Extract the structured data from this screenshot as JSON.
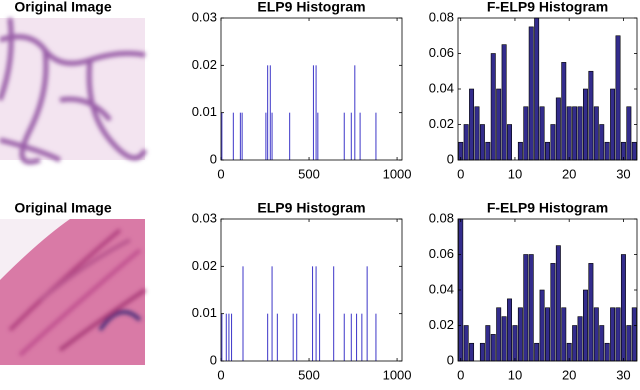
{
  "images": [
    {
      "title": "Original Image"
    },
    {
      "title": "Original Image"
    }
  ],
  "chart_data": [
    {
      "type": "stem",
      "title": "ELP9 Histogram",
      "color": "#3c35c8",
      "x": [
        5,
        70,
        110,
        120,
        255,
        265,
        280,
        290,
        390,
        525,
        540,
        550,
        700,
        740,
        760,
        790,
        880
      ],
      "values": [
        0.01,
        0.01,
        0.01,
        0.01,
        0.01,
        0.02,
        0.02,
        0.01,
        0.01,
        0.02,
        0.02,
        0.01,
        0.01,
        0.01,
        0.02,
        0.01,
        0.01
      ],
      "xlim": [
        0,
        1028
      ],
      "ylim": [
        0,
        0.03
      ],
      "xticks": [
        0,
        500,
        1000
      ],
      "yticks": [
        0,
        0.01,
        0.02,
        0.03
      ]
    },
    {
      "type": "bar",
      "title": "F-ELP9 Histogram",
      "color": "#332c8c",
      "x": [
        0,
        1,
        2,
        3,
        4,
        5,
        6,
        7,
        8,
        9,
        10,
        11,
        12,
        13,
        14,
        15,
        16,
        17,
        18,
        19,
        20,
        21,
        22,
        23,
        24,
        25,
        26,
        27,
        28,
        29,
        30,
        31,
        32
      ],
      "values": [
        0.01,
        0.02,
        0.04,
        0.03,
        0.02,
        0.01,
        0.06,
        0.04,
        0.065,
        0.02,
        0,
        0.01,
        0.03,
        0.075,
        0.08,
        0.03,
        0.01,
        0.02,
        0.035,
        0.055,
        0.03,
        0.03,
        0.03,
        0.04,
        0.05,
        0.03,
        0.02,
        0.01,
        0.04,
        0.07,
        0.01,
        0.03,
        0.01
      ],
      "xlim": [
        -0.5,
        32.5
      ],
      "ylim": [
        0,
        0.08
      ],
      "xticks": [
        0,
        10,
        20,
        30
      ],
      "yticks": [
        0,
        0.02,
        0.04,
        0.06,
        0.08
      ]
    },
    {
      "type": "stem",
      "title": "ELP9 Histogram",
      "color": "#3c35c8",
      "x": [
        5,
        30,
        45,
        60,
        125,
        265,
        290,
        320,
        410,
        430,
        520,
        540,
        560,
        640,
        700,
        740,
        770,
        800,
        830,
        880
      ],
      "values": [
        0.01,
        0.01,
        0.01,
        0.01,
        0.02,
        0.01,
        0.02,
        0.01,
        0.01,
        0.01,
        0.02,
        0.02,
        0.01,
        0.02,
        0.01,
        0.01,
        0.01,
        0.01,
        0.02,
        0.01
      ],
      "xlim": [
        0,
        1028
      ],
      "ylim": [
        0,
        0.03
      ],
      "xticks": [
        0,
        500,
        1000
      ],
      "yticks": [
        0,
        0.01,
        0.02,
        0.03
      ]
    },
    {
      "type": "bar",
      "title": "F-ELP9 Histogram",
      "color": "#332c8c",
      "x": [
        0,
        1,
        2,
        3,
        4,
        5,
        6,
        7,
        8,
        9,
        10,
        11,
        12,
        13,
        14,
        15,
        16,
        17,
        18,
        19,
        20,
        21,
        22,
        23,
        24,
        25,
        26,
        27,
        28,
        29,
        30,
        31,
        32
      ],
      "values": [
        0.08,
        0.02,
        0.01,
        0,
        0.01,
        0.02,
        0.015,
        0.03,
        0.025,
        0.035,
        0.02,
        0.03,
        0.06,
        0.06,
        0.01,
        0.04,
        0.03,
        0.055,
        0.065,
        0.03,
        0.01,
        0.02,
        0.025,
        0.04,
        0.055,
        0.03,
        0.02,
        0.01,
        0.03,
        0.03,
        0.06,
        0.02,
        0.03
      ],
      "xlim": [
        -0.5,
        32.5
      ],
      "ylim": [
        0,
        0.08
      ],
      "xticks": [
        0,
        10,
        20,
        30
      ],
      "yticks": [
        0,
        0.02,
        0.04,
        0.06,
        0.08
      ]
    }
  ]
}
